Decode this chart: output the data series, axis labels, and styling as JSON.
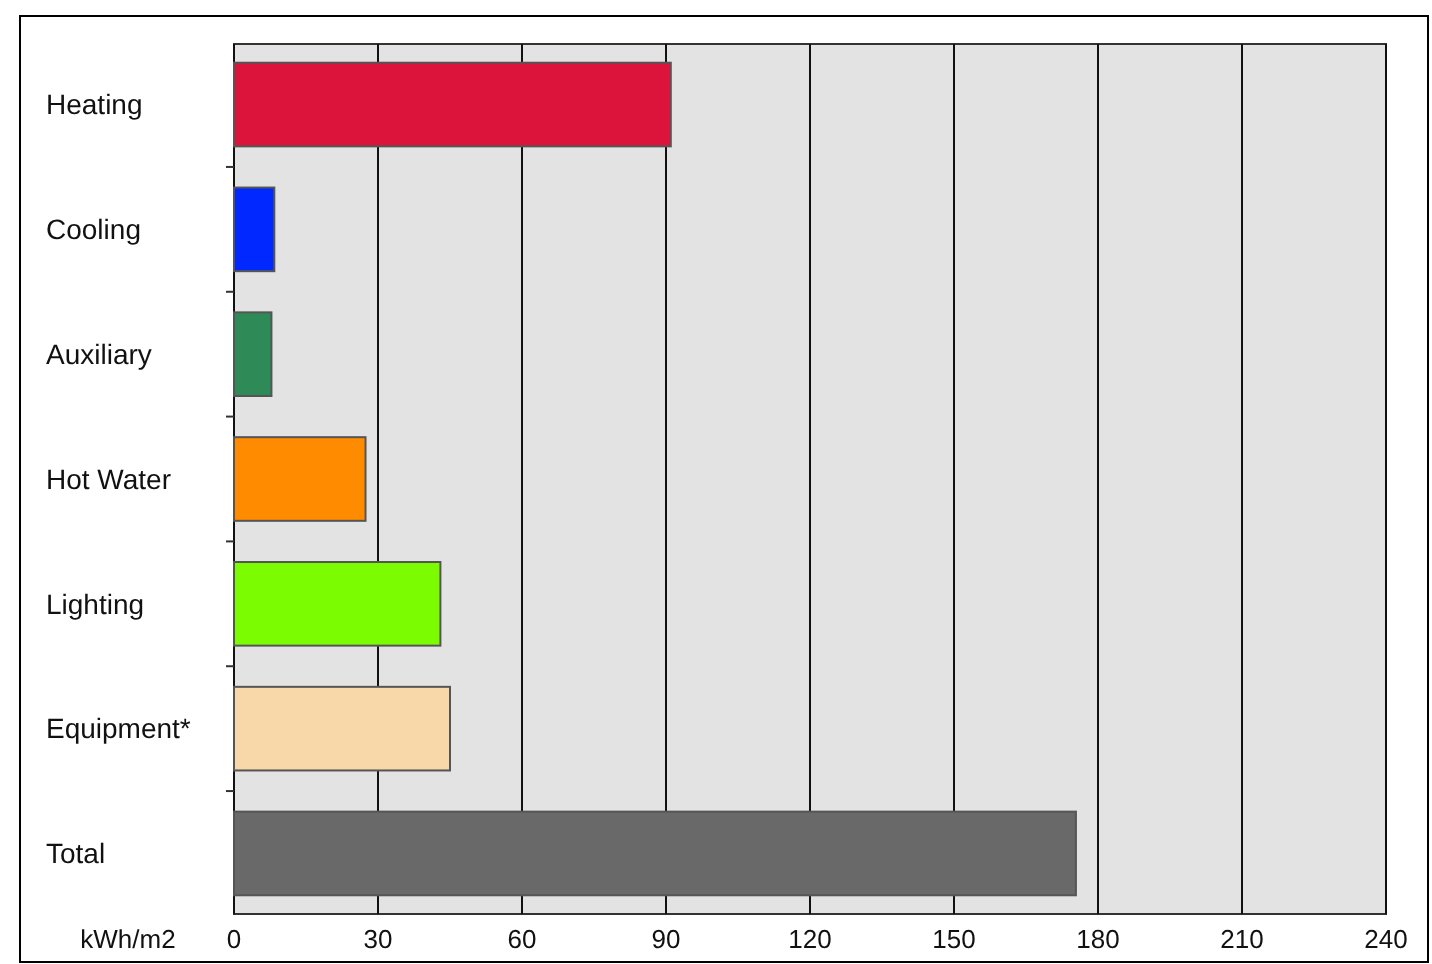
{
  "chart_data": {
    "type": "bar",
    "orientation": "horizontal",
    "categories": [
      "Heating",
      "Cooling",
      "Auxiliary",
      "Hot Water",
      "Lighting",
      "Equipment*",
      "Total"
    ],
    "values": [
      91,
      8.4,
      7.8,
      27.4,
      43,
      45,
      175.4
    ],
    "colors": [
      "#dc143c",
      "#0028ff",
      "#2e8b57",
      "#ff8c00",
      "#7cfc00",
      "#f8d8a8",
      "#696969"
    ],
    "xlabel": "kWh/m2",
    "xlim": [
      0,
      240
    ],
    "xticks": [
      0,
      30,
      60,
      90,
      120,
      150,
      180,
      210,
      240
    ],
    "grid": "x"
  }
}
